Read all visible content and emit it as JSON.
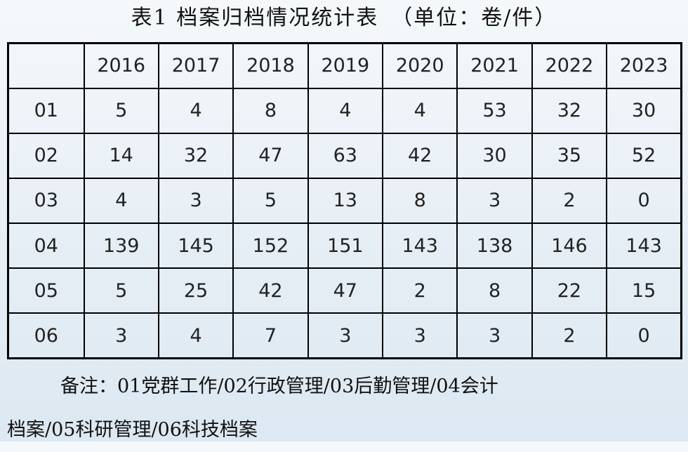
{
  "title": {
    "text": "表1 档案归档情况统计表",
    "unit": "（单位：卷/件）"
  },
  "table": {
    "corner": "",
    "years": [
      "2016",
      "2017",
      "2018",
      "2019",
      "2020",
      "2021",
      "2022",
      "2023"
    ],
    "rows": [
      {
        "code": "01",
        "values": [
          "5",
          "4",
          "8",
          "4",
          "4",
          "53",
          "32",
          "30"
        ]
      },
      {
        "code": "02",
        "values": [
          "14",
          "32",
          "47",
          "63",
          "42",
          "30",
          "35",
          "52"
        ]
      },
      {
        "code": "03",
        "values": [
          "4",
          "3",
          "5",
          "13",
          "8",
          "3",
          "2",
          "0"
        ]
      },
      {
        "code": "04",
        "values": [
          "139",
          "145",
          "152",
          "151",
          "143",
          "138",
          "146",
          "143"
        ]
      },
      {
        "code": "05",
        "values": [
          "5",
          "25",
          "42",
          "47",
          "2",
          "8",
          "22",
          "15"
        ]
      },
      {
        "code": "06",
        "values": [
          "3",
          "4",
          "7",
          "3",
          "3",
          "3",
          "2",
          "0"
        ]
      }
    ]
  },
  "note": {
    "line1": "备注：01党群工作/02行政管理/03后勤管理/04会计",
    "line2": "档案/05科研管理/06科技档案"
  }
}
